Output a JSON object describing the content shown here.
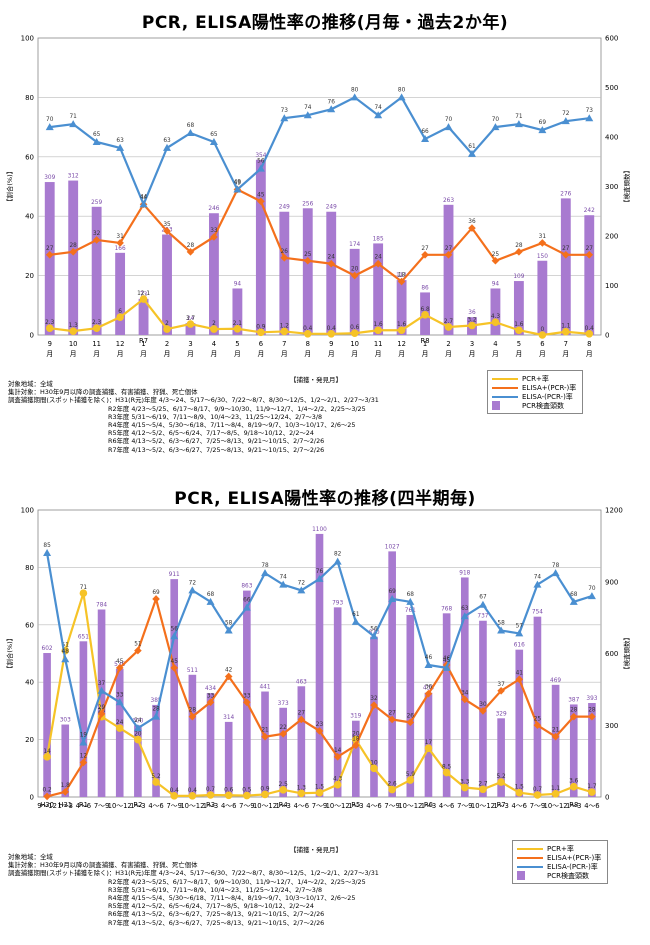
{
  "chart_data": [
    {
      "type": "bar",
      "title": "PCR, ELISA陽性率の推移(月毎・過去2か年)",
      "xlabel": "【捕獲・発見月】",
      "ylabel": "【割合(%)】",
      "y2label": "【検査頭数】",
      "ylim": [
        0,
        100
      ],
      "y2lim": [
        0,
        600
      ],
      "yticks": [
        "0",
        "20",
        "40",
        "60",
        "80",
        "100"
      ],
      "y2ticks": [
        "0",
        "100",
        "200",
        "300",
        "400",
        "500",
        "600"
      ],
      "categories": [
        "9",
        "10",
        "11",
        "12",
        "1",
        "2",
        "3",
        "4",
        "5",
        "6",
        "7",
        "8",
        "9",
        "10",
        "11",
        "12",
        "1",
        "2",
        "3",
        "4",
        "5",
        "6",
        "7",
        "8"
      ],
      "unit_labels": [
        "月",
        "月",
        "月",
        "月",
        "月",
        "月",
        "月",
        "月",
        "月",
        "月",
        "月",
        "月",
        "月",
        "月",
        "月",
        "月",
        "月",
        "月",
        "月",
        "月",
        "月",
        "月",
        "月",
        "月"
      ],
      "year_markers": [
        {
          "index": 4,
          "label": "R7"
        },
        {
          "index": 16,
          "label": "R8"
        }
      ],
      "series": [
        {
          "name": "PCR+率",
          "kind": "line",
          "color": "#f6c327",
          "marker": "circle",
          "values": [
            2.3,
            1.3,
            2.3,
            6.0,
            12.1,
            2.0,
            3.7,
            2.0,
            2.1,
            0.9,
            1.2,
            0.4,
            0.4,
            0.6,
            1.6,
            1.6,
            6.8,
            2.7,
            3.2,
            4.3,
            1.6,
            0,
            1.1,
            0.4
          ]
        },
        {
          "name": "ELISA+(PCR-)率",
          "kind": "line",
          "color": "#f4701c",
          "marker": "diamond",
          "values": [
            27,
            28,
            32,
            31,
            44,
            35,
            28,
            33,
            49,
            45,
            26,
            25,
            24,
            20,
            24,
            18,
            27,
            27,
            36,
            25,
            28,
            31,
            27,
            27
          ]
        },
        {
          "name": "ELISA-(PCR-)率",
          "kind": "line",
          "color": "#4a8fd1",
          "marker": "triangle",
          "values": [
            70,
            71,
            65,
            63,
            44,
            63,
            68,
            65,
            49,
            56,
            73,
            74,
            76,
            80,
            74,
            80,
            66,
            70,
            61,
            70,
            71,
            69,
            72,
            73
          ]
        },
        {
          "name": "PCR検査頭数",
          "kind": "bar",
          "axis": "right",
          "color": "#a87ad0",
          "values": [
            309,
            312,
            259,
            166,
            73,
            203,
            24,
            246,
            94,
            354,
            249,
            256,
            249,
            174,
            185,
            111,
            86,
            263,
            36,
            94,
            109,
            150,
            276,
            242
          ]
        }
      ],
      "legend_placement": "bottom-right",
      "notes": [
        "対象地域：全域",
        "集計対象：H30年9月以降の調査捕獲、有害捕獲、狩猟、死亡個体",
        "調査捕獲期間(スポット捕獲を除く)：H31(R元)年度 4/3～24、5/17～6/30、7/22～8/7、8/30～12/5、1/2～2/1、2/27～3/31",
        "R2年度 4/23～5/25、6/17～8/17、9/9～10/30、11/9～12/7、1/4～2/2、2/25～3/25",
        "R3年度 5/31～6/19、7/11～8/9、10/4～23、11/25～12/24、2/7～3/8",
        "R4年度 4/15～5/4、5/30～6/18、7/11～8/4、8/19～9/7、10/3～10/17、2/6～25",
        "R5年度 4/12～5/2、6/5～6/24、7/17～8/5、9/18～10/12、2/2～24",
        "R6年度 4/13～5/2、6/3～6/27、7/25～8/13、9/21～10/15、2/7～2/26",
        "R7年度 4/13～5/2、6/3～6/27、7/25～8/13、9/21～10/15、2/7～2/26"
      ]
    },
    {
      "type": "bar",
      "title": "PCR, ELISA陽性率の推移(四半期毎)",
      "xlabel": "【捕獲・発見月】",
      "ylabel": "【割合(%)】",
      "y2label": "【検査頭数】",
      "ylim": [
        0,
        100
      ],
      "y2lim": [
        0,
        1200
      ],
      "yticks": [
        "0",
        "20",
        "40",
        "60",
        "80",
        "100"
      ],
      "y2ticks": [
        "0",
        "300",
        "600",
        "900",
        "1200"
      ],
      "categories": [
        "9～12",
        "1～3",
        "4～6",
        "7～9",
        "10～12",
        "1～3",
        "4～6",
        "7～9",
        "10～12",
        "1～3",
        "4～6",
        "7～9",
        "10～12",
        "1～3",
        "4～6",
        "7～9",
        "10～12",
        "1～3",
        "4～6",
        "7～9",
        "10～12",
        "1～3",
        "4～6",
        "7～9",
        "10～12",
        "1～3",
        "4～6",
        "7～9",
        "10～12",
        "1～3",
        "4～6"
      ],
      "year_markers": [
        {
          "index": 0,
          "label": "H30"
        },
        {
          "index": 1,
          "label": "H31"
        },
        {
          "index": 2,
          "label": "R1"
        },
        {
          "index": 5,
          "label": "R2"
        },
        {
          "index": 9,
          "label": "R3"
        },
        {
          "index": 13,
          "label": "R4"
        },
        {
          "index": 17,
          "label": "R5"
        },
        {
          "index": 21,
          "label": "R6"
        },
        {
          "index": 25,
          "label": "R7"
        },
        {
          "index": 29,
          "label": "R8"
        }
      ],
      "series": [
        {
          "name": "PCR+率",
          "kind": "line",
          "color": "#f6c327",
          "marker": "circle",
          "values": [
            14,
            51,
            71,
            28,
            24,
            20,
            5.2,
            0.4,
            0.4,
            0.7,
            0.6,
            0.5,
            0.9,
            2.5,
            1.3,
            1.5,
            4.3,
            20,
            10,
            2.6,
            5.9,
            17,
            8.5,
            3.3,
            2.7,
            5.2,
            1.5,
            0.7,
            1.1,
            3.6,
            1.7
          ]
        },
        {
          "name": "ELISA+(PCR-)率",
          "kind": "line",
          "color": "#f4701c",
          "marker": "diamond",
          "values": [
            0.2,
            1.8,
            12,
            29,
            45,
            51,
            69,
            45,
            28,
            33,
            42,
            33,
            21,
            22,
            27,
            23,
            14,
            18,
            32,
            27,
            26,
            36,
            46,
            34,
            30,
            37,
            41,
            25,
            21,
            28,
            28
          ]
        },
        {
          "name": "ELISA-(PCR-)率",
          "kind": "line",
          "color": "#4a8fd1",
          "marker": "triangle",
          "values": [
            85,
            48,
            19,
            37,
            33,
            24,
            28,
            56,
            72,
            68,
            58,
            66,
            78,
            74,
            72,
            76,
            82,
            61,
            56,
            69,
            68,
            46,
            45,
            63,
            67,
            58,
            57,
            74,
            78,
            68,
            70
          ]
        },
        {
          "name": "PCR検査頭数",
          "kind": "bar",
          "axis": "right",
          "color": "#a87ad0",
          "values": [
            602,
            303,
            651,
            784,
            536,
            300,
            385,
            911,
            511,
            434,
            314,
            863,
            441,
            373,
            463,
            1100,
            793,
            319,
            670,
            1027,
            761,
            436,
            768,
            918,
            737,
            329,
            616,
            754,
            469,
            387,
            393
          ]
        }
      ],
      "legend_placement": "bottom-right",
      "notes": [
        "対象地域：全域",
        "集計対象：H30年9月以降の調査捕獲、有害捕獲、狩猟、死亡個体",
        "調査捕獲期間(スポット捕獲を除く)：H31(R元)年度 4/3～24、5/17～6/30、7/22～8/7、8/30～12/5、1/2～2/1、2/27～3/31",
        "R2年度 4/23～5/25、6/17～8/17、9/9～10/30、11/9～12/7、1/4～2/2、2/25～3/25",
        "R3年度 5/31～6/19、7/11～8/9、10/4～23、11/25～12/24、2/7～3/8",
        "R4年度 4/15～5/4、5/30～6/18、7/11～8/4、8/19～9/7、10/3～10/17、2/6～25",
        "R5年度 4/12～5/2、6/5～6/24、7/17～8/5、9/18～10/12、2/2～24",
        "R6年度 4/13～5/2、6/3～6/27、7/25～8/13、9/21～10/15、2/7～2/26",
        "R7年度 4/13～5/2、6/3～6/27、7/25～8/13、9/21～10/15、2/7～2/26"
      ]
    }
  ]
}
